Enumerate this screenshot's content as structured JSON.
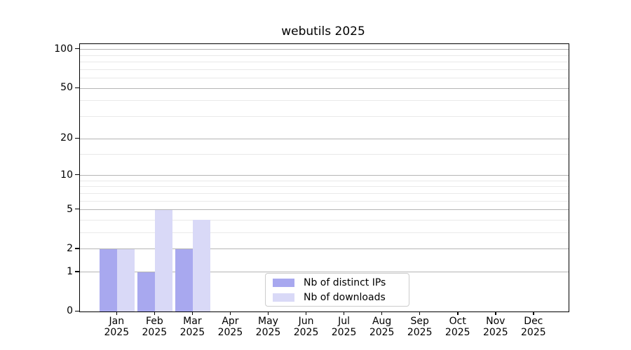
{
  "title": "webutils 2025",
  "chart_data": {
    "type": "bar",
    "title": "webutils 2025",
    "categories": [
      "Jan 2025",
      "Feb 2025",
      "Mar 2025",
      "Apr 2025",
      "May 2025",
      "Jun 2025",
      "Jul 2025",
      "Aug 2025",
      "Sep 2025",
      "Oct 2025",
      "Nov 2025",
      "Dec 2025"
    ],
    "x_tick_months": [
      "Jan",
      "Feb",
      "Mar",
      "Apr",
      "May",
      "Jun",
      "Jul",
      "Aug",
      "Sep",
      "Oct",
      "Nov",
      "Dec"
    ],
    "x_tick_year": "2025",
    "series": [
      {
        "name": "Nb of distinct IPs",
        "color": "#a8a8ef",
        "values": [
          2,
          1,
          2,
          0,
          0,
          0,
          0,
          0,
          0,
          0,
          0,
          0
        ]
      },
      {
        "name": "Nb of downloads",
        "color": "#d9d9f7",
        "values": [
          2,
          5,
          4,
          0,
          0,
          0,
          0,
          0,
          0,
          0,
          0,
          0
        ]
      }
    ],
    "ylabel": "",
    "xlabel": "",
    "yscale": "log(1+y)",
    "yticks": [
      0,
      1,
      2,
      5,
      10,
      20,
      50,
      100
    ],
    "y_minor_gridlines": [
      3,
      4,
      6,
      7,
      8,
      9,
      15,
      30,
      40,
      60,
      70,
      80,
      90
    ],
    "ylim": [
      0,
      110
    ],
    "grid": "horizontal major+minor",
    "legend_position": "lower center"
  },
  "colors": {
    "major_grid": "#b5b5b5",
    "minor_grid": "#e9e9e9",
    "axis": "#000000",
    "background": "#ffffff"
  }
}
